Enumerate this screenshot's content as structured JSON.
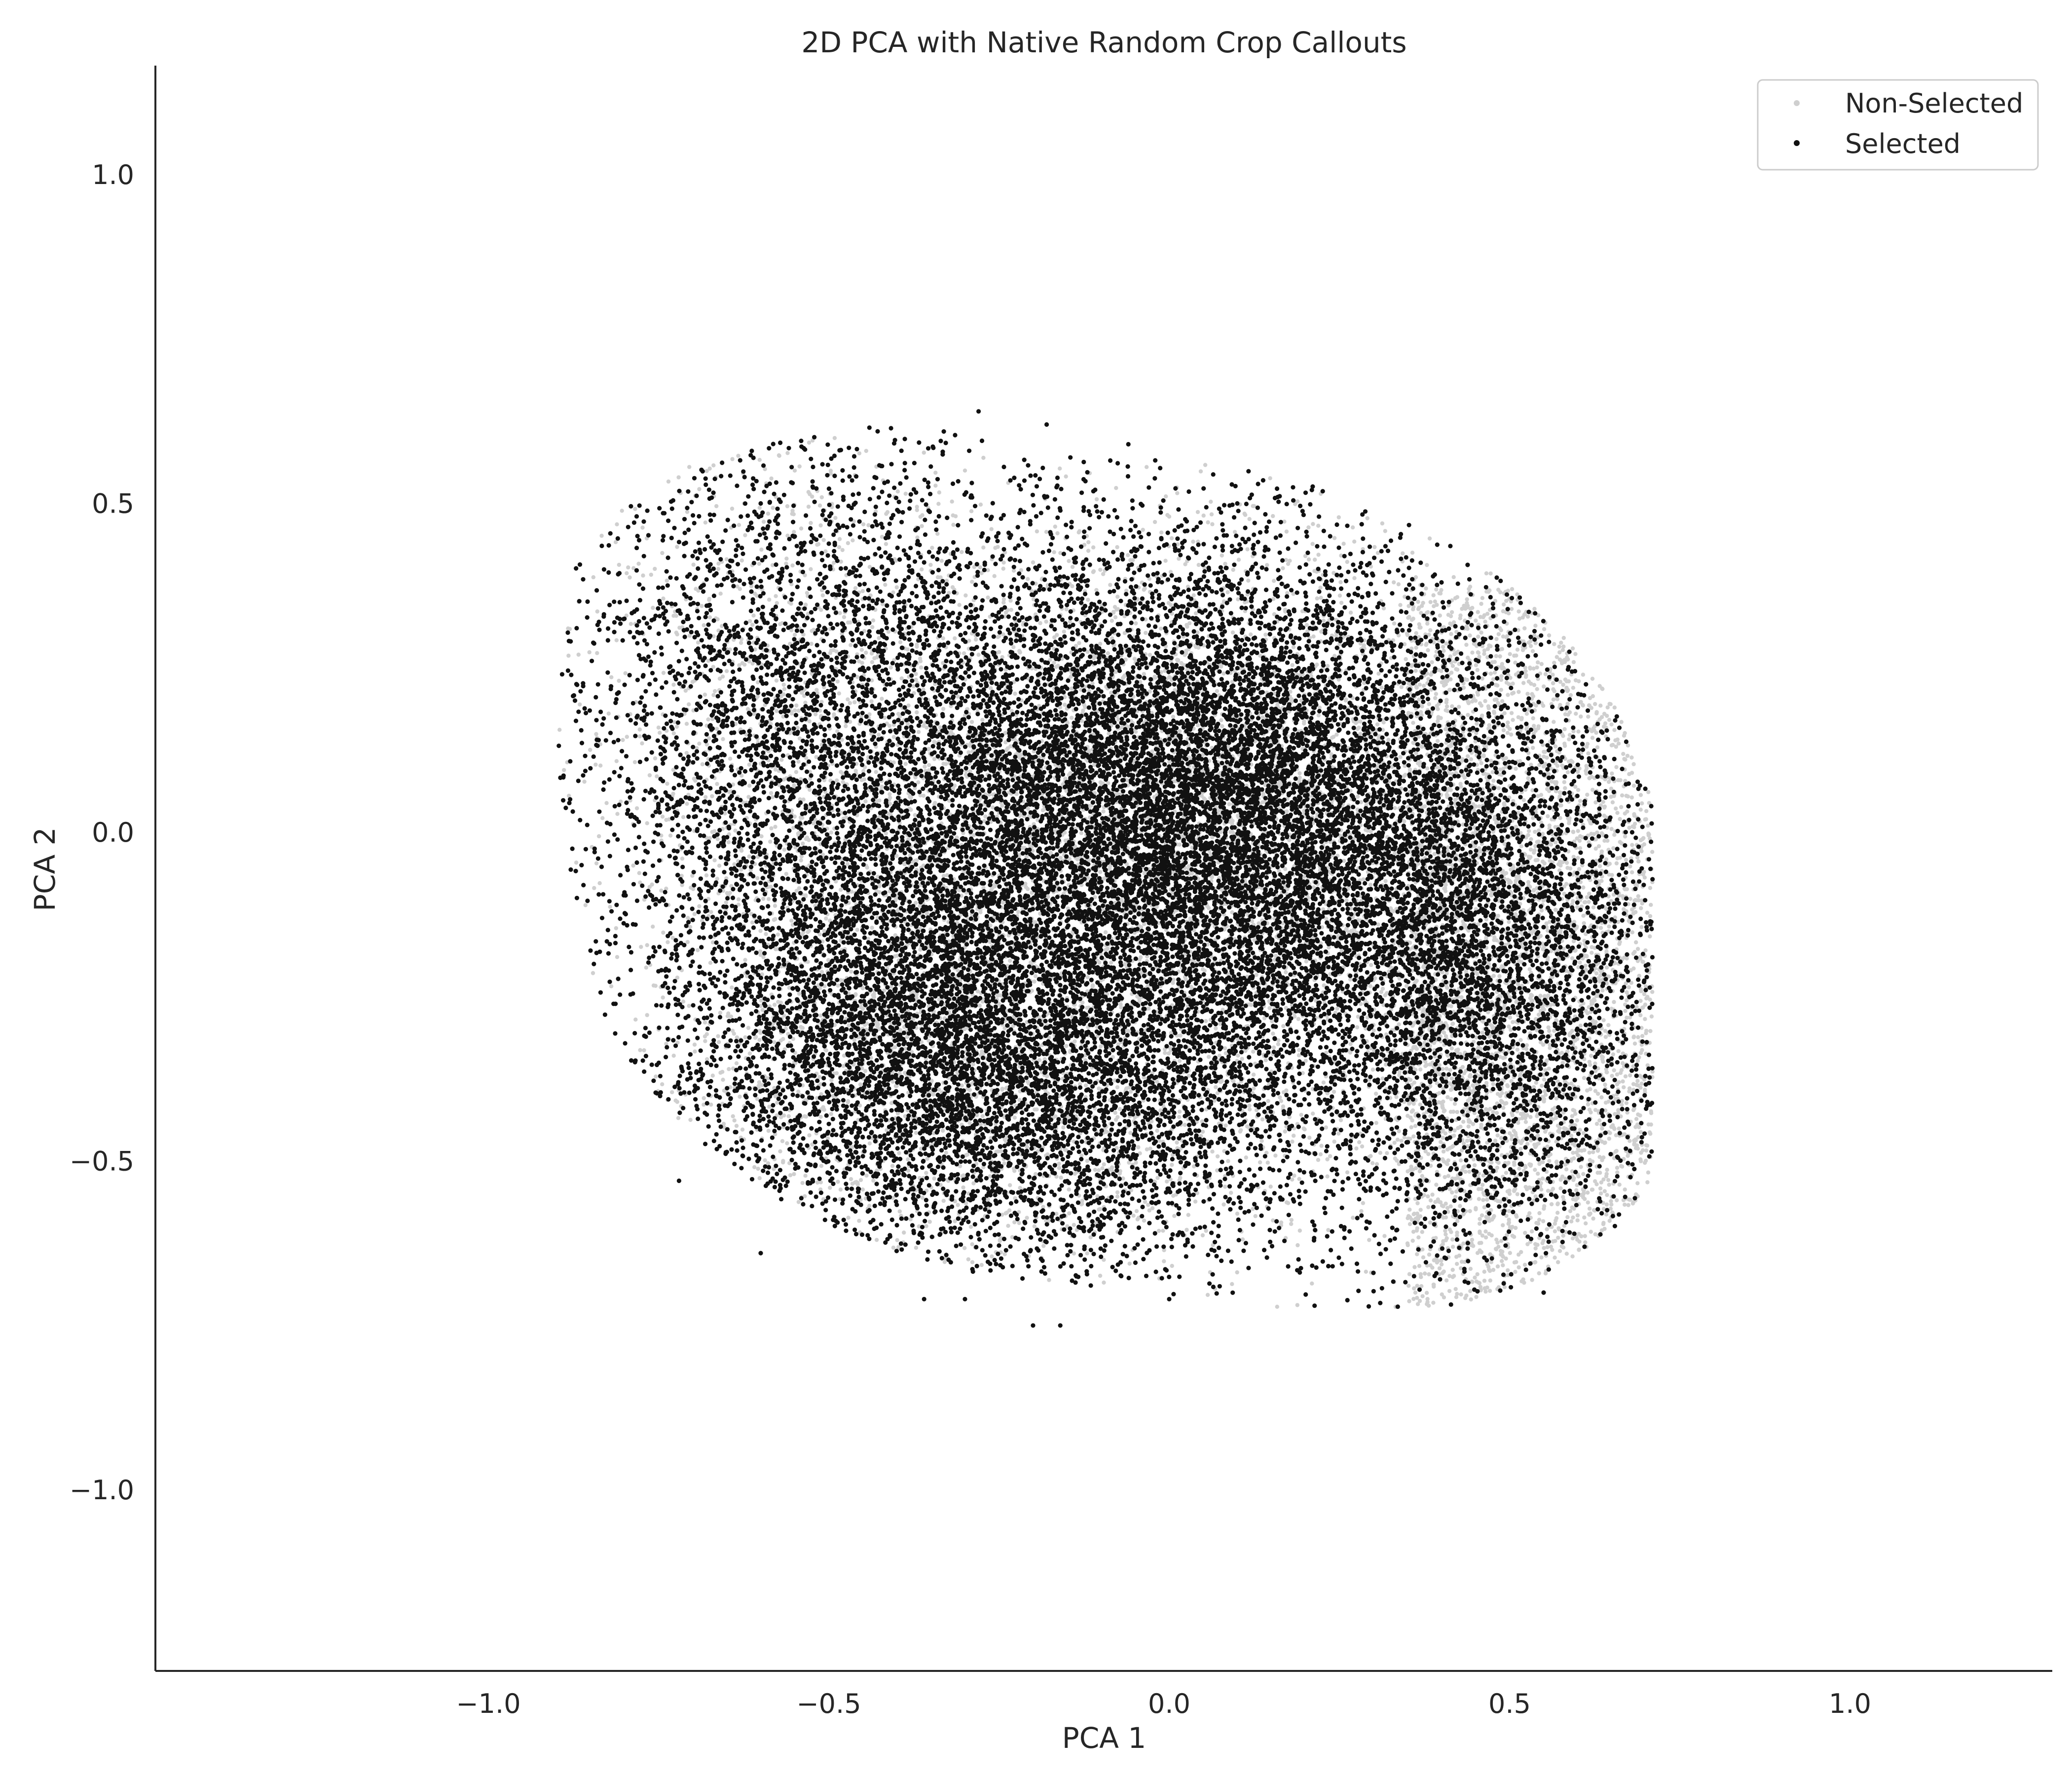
{
  "chart_data": {
    "type": "scatter",
    "title": "2D PCA with Native Random Crop Callouts",
    "xlabel": "PCA 1",
    "ylabel": "PCA 2",
    "xlim": [
      -1.5,
      1.3
    ],
    "ylim": [
      -1.28,
      1.17
    ],
    "xticks": [
      -1.0,
      -0.5,
      0.0,
      0.5,
      1.0
    ],
    "xtick_labels": [
      "−1.0",
      "−0.5",
      "0.0",
      "0.5",
      "1.0"
    ],
    "yticks": [
      1.0,
      0.5,
      0.0,
      -0.5,
      -1.0
    ],
    "ytick_labels": [
      "1.0",
      "0.5",
      "0.0",
      "−0.5",
      "−1.0"
    ],
    "grid": false,
    "legend_position": "top-right",
    "series": [
      {
        "name": "Non-Selected",
        "color": "#cfcfcf",
        "marker": "dot",
        "distribution": "dense point cloud spanning roughly PCA1 -0.87..0.70, PCA2 -0.73..0.60",
        "x": [
          -0.55,
          -0.3,
          0.0,
          0.2,
          0.35,
          0.45,
          0.55,
          0.6,
          0.62,
          0.5,
          0.4,
          0.1,
          -0.1,
          -0.4,
          -0.75,
          0.58,
          0.66,
          0.52,
          0.3,
          -0.2
        ],
        "y": [
          0.55,
          0.55,
          0.48,
          0.42,
          0.3,
          0.2,
          0.1,
          -0.1,
          -0.3,
          -0.55,
          -0.65,
          -0.58,
          -0.6,
          -0.55,
          -0.3,
          -0.45,
          -0.2,
          -0.68,
          0.05,
          -0.1
        ]
      },
      {
        "name": "Selected",
        "color": "#111111",
        "marker": "dot",
        "distribution": "dense point cloud, densest near (0.0, 0.0), spanning roughly PCA1 -0.88..0.70, PCA2 -0.75..0.63",
        "x": [
          -0.88,
          -0.87,
          -0.85,
          -0.7,
          -0.6,
          -0.55,
          -0.28,
          -0.18,
          -0.06,
          0.1,
          0.22,
          0.4,
          0.6,
          0.68,
          0.7,
          0.6,
          0.55,
          0.3,
          0.24,
          0.0,
          -0.16,
          -0.2,
          -0.3,
          -0.36,
          -0.6,
          -0.72,
          -0.5,
          -0.35,
          -0.1,
          0.0,
          0.15,
          0.35
        ],
        "y": [
          0.05,
          -0.1,
          -0.18,
          0.42,
          0.5,
          0.45,
          0.64,
          0.62,
          0.59,
          0.5,
          0.48,
          0.38,
          0.19,
          0.0,
          -0.24,
          -0.55,
          -0.7,
          -0.67,
          -0.66,
          -0.71,
          -0.75,
          -0.75,
          -0.71,
          -0.71,
          -0.64,
          -0.53,
          -0.35,
          -0.35,
          0.05,
          0.1,
          0.0,
          -0.03
        ]
      }
    ]
  }
}
